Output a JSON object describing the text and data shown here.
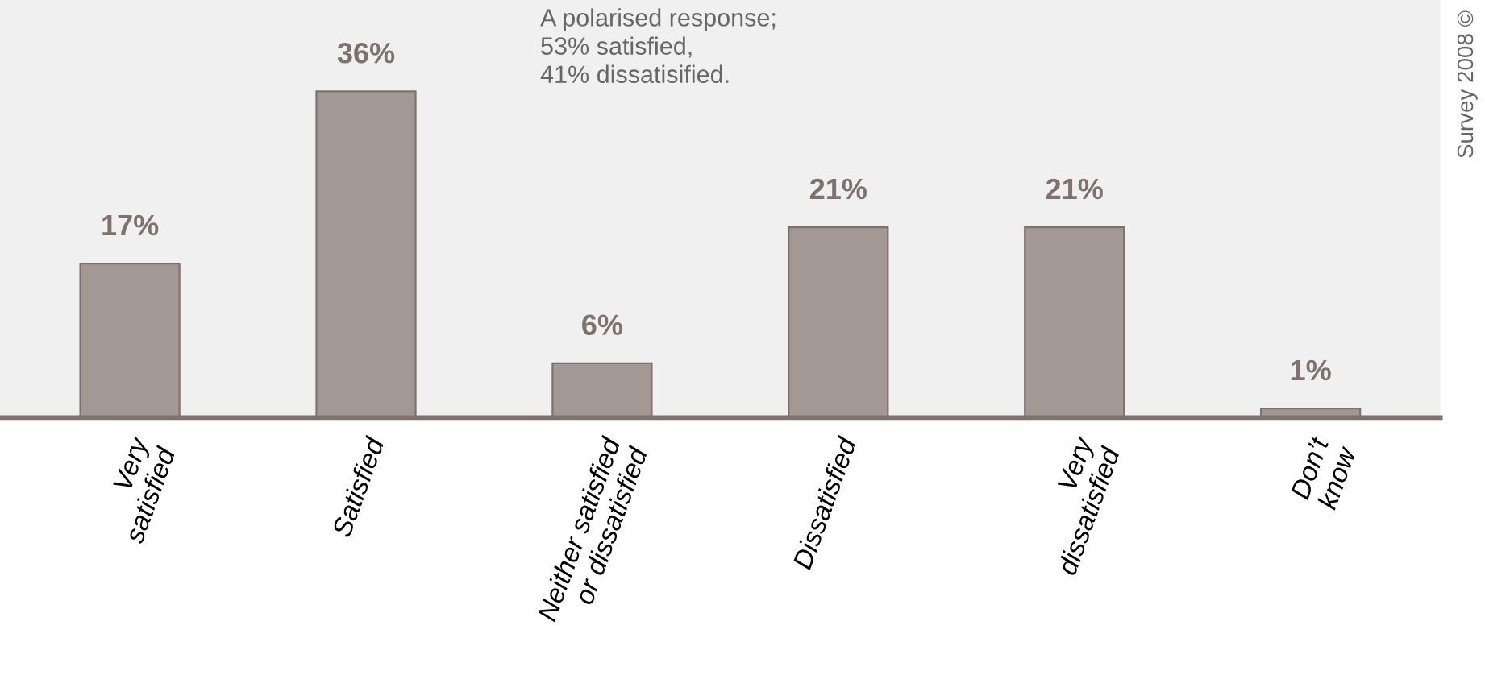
{
  "chart_data": {
    "type": "bar",
    "categories": [
      "Very\nsatisfied",
      "Satisfied",
      "Neither satisfied\nor dissatisfied",
      "Dissatisfied",
      "Very\ndissatisfied",
      "Don’t\nknow"
    ],
    "values": [
      17,
      36,
      6,
      21,
      21,
      1
    ],
    "value_labels": [
      "17%",
      "36%",
      "6%",
      "21%",
      "21%",
      "1%"
    ],
    "color": "#a39893",
    "annotations": [
      "A polarised response;\n53% satisfied,\n41% dissatisified.",
      "Survey 2008 ©"
    ],
    "grid": false,
    "legend": false
  }
}
